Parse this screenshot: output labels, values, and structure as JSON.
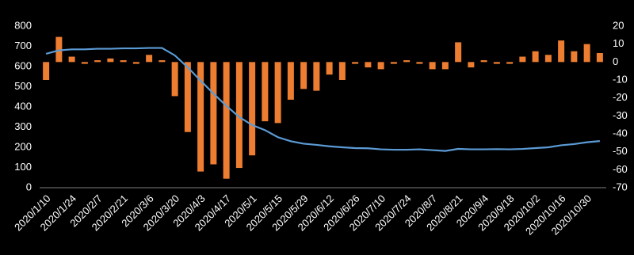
{
  "chart_data": {
    "type": "bar",
    "categories": [
      "2020/1/10",
      null,
      "2020/1/24",
      null,
      "2020/2/7",
      null,
      "2020/2/21",
      null,
      "2020/3/6",
      null,
      "2020/3/20",
      null,
      "2020/4/3",
      null,
      "2020/4/17",
      null,
      "2020/5/1",
      null,
      "2020/5/15",
      null,
      "2020/5/29",
      null,
      "2020/6/12",
      null,
      "2020/6/26",
      null,
      "2020/7/10",
      null,
      "2020/7/24",
      null,
      "2020/8/7",
      null,
      "2020/8/21",
      null,
      "2020/9/4",
      null,
      "2020/9/18",
      null,
      "2020/10/2",
      null,
      "2020/10/16",
      null,
      "2020/10/30",
      null
    ],
    "series": [
      {
        "type": "bar",
        "axis": "y2",
        "color": "#ed7d31",
        "values": [
          -10,
          14,
          3,
          -1,
          1,
          2,
          1,
          -1,
          4,
          1,
          -19,
          -39,
          -61,
          -57,
          -65,
          -59,
          -52,
          -33,
          -34,
          -21,
          -15,
          -16,
          -7,
          -10,
          -1,
          -3,
          -4,
          -1,
          1,
          -1,
          -4,
          -4,
          11,
          -3,
          1,
          -1,
          -1,
          3,
          6,
          4,
          12,
          6,
          10,
          5
        ]
      },
      {
        "type": "line",
        "color": "#5b9bd5",
        "values": [
          663,
          680,
          685,
          685,
          688,
          688,
          690,
          690,
          692,
          692,
          655,
          596,
          530,
          466,
          405,
          350,
          310,
          285,
          250,
          230,
          218,
          212,
          205,
          200,
          196,
          195,
          190,
          188,
          188,
          190,
          186,
          182,
          192,
          190,
          190,
          191,
          190,
          192,
          196,
          200,
          210,
          216,
          225,
          231
        ]
      }
    ],
    "ylim": [
      0,
      800
    ],
    "yticks": [
      0,
      100,
      200,
      300,
      400,
      500,
      600,
      700,
      800
    ],
    "y2lim": [
      -70,
      20
    ],
    "y2ticks": [
      -70,
      -60,
      -50,
      -40,
      -30,
      -20,
      -10,
      0,
      10,
      20
    ]
  }
}
